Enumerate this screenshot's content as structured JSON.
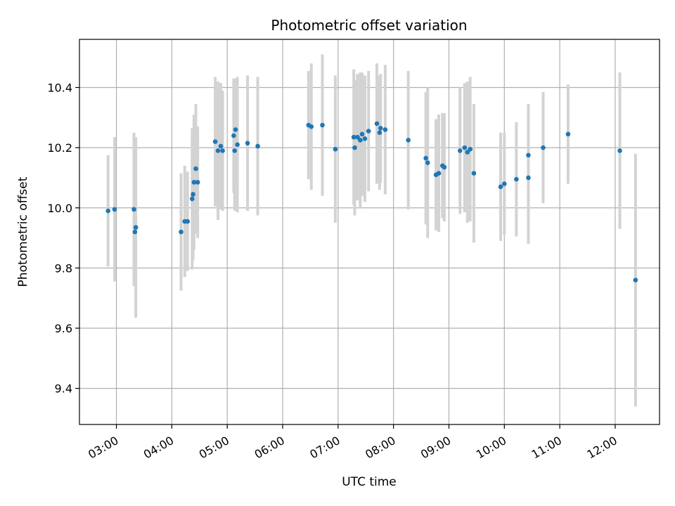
{
  "chart_data": {
    "type": "scatter",
    "title": "Photometric offset variation",
    "xlabel": "UTC time",
    "ylabel": "Photometric offset",
    "x_unit": "HH:MM (UTC)",
    "xlim": [
      "02:20",
      "12:48"
    ],
    "ylim": [
      9.28,
      10.56
    ],
    "x_ticks": [
      "03:00",
      "04:00",
      "05:00",
      "06:00",
      "07:00",
      "08:00",
      "09:00",
      "10:00",
      "11:00",
      "12:00"
    ],
    "y_ticks": [
      "9.4",
      "9.6",
      "9.8",
      "10.0",
      "10.2",
      "10.4"
    ],
    "grid": true,
    "legend": "none",
    "colors": {
      "marker": "#1f77b4",
      "errorbar": "#d3d3d3",
      "grid": "#b0b0b0"
    },
    "points": [
      {
        "x": "02:51",
        "y": 9.99,
        "err": 0.185
      },
      {
        "x": "02:58",
        "y": 9.995,
        "err": 0.24
      },
      {
        "x": "03:19",
        "y": 9.995,
        "err": 0.255
      },
      {
        "x": "03:20",
        "y": 9.92,
        "err": 0.18
      },
      {
        "x": "03:21",
        "y": 9.935,
        "err": 0.3
      },
      {
        "x": "04:10",
        "y": 9.92,
        "err": 0.195
      },
      {
        "x": "04:14",
        "y": 9.955,
        "err": 0.185
      },
      {
        "x": "04:17",
        "y": 9.955,
        "err": 0.165
      },
      {
        "x": "04:22",
        "y": 10.03,
        "err": 0.235
      },
      {
        "x": "04:23",
        "y": 10.045,
        "err": 0.22
      },
      {
        "x": "04:24",
        "y": 10.085,
        "err": 0.225
      },
      {
        "x": "04:26",
        "y": 10.13,
        "err": 0.215
      },
      {
        "x": "04:28",
        "y": 10.085,
        "err": 0.185
      },
      {
        "x": "04:47",
        "y": 10.22,
        "err": 0.215
      },
      {
        "x": "04:50",
        "y": 10.19,
        "err": 0.23
      },
      {
        "x": "04:53",
        "y": 10.205,
        "err": 0.21
      },
      {
        "x": "04:55",
        "y": 10.19,
        "err": 0.2
      },
      {
        "x": "05:07",
        "y": 10.24,
        "err": 0.19
      },
      {
        "x": "05:08",
        "y": 10.19,
        "err": 0.2
      },
      {
        "x": "05:09",
        "y": 10.26,
        "err": 0.17
      },
      {
        "x": "05:11",
        "y": 10.21,
        "err": 0.225
      },
      {
        "x": "05:22",
        "y": 10.215,
        "err": 0.225
      },
      {
        "x": "05:33",
        "y": 10.205,
        "err": 0.23
      },
      {
        "x": "06:28",
        "y": 10.275,
        "err": 0.18
      },
      {
        "x": "06:31",
        "y": 10.27,
        "err": 0.21
      },
      {
        "x": "06:43",
        "y": 10.275,
        "err": 0.235
      },
      {
        "x": "06:57",
        "y": 10.195,
        "err": 0.245
      },
      {
        "x": "07:17",
        "y": 10.235,
        "err": 0.225
      },
      {
        "x": "07:18",
        "y": 10.2,
        "err": 0.225
      },
      {
        "x": "07:21",
        "y": 10.235,
        "err": 0.21
      },
      {
        "x": "07:24",
        "y": 10.225,
        "err": 0.225
      },
      {
        "x": "07:26",
        "y": 10.245,
        "err": 0.205
      },
      {
        "x": "07:29",
        "y": 10.23,
        "err": 0.21
      },
      {
        "x": "07:33",
        "y": 10.255,
        "err": 0.2
      },
      {
        "x": "07:42",
        "y": 10.28,
        "err": 0.2
      },
      {
        "x": "07:45",
        "y": 10.25,
        "err": 0.19
      },
      {
        "x": "07:46",
        "y": 10.265,
        "err": 0.18
      },
      {
        "x": "07:51",
        "y": 10.26,
        "err": 0.215
      },
      {
        "x": "08:16",
        "y": 10.225,
        "err": 0.23
      },
      {
        "x": "08:35",
        "y": 10.165,
        "err": 0.22
      },
      {
        "x": "08:37",
        "y": 10.15,
        "err": 0.25
      },
      {
        "x": "08:46",
        "y": 10.11,
        "err": 0.185
      },
      {
        "x": "08:49",
        "y": 10.115,
        "err": 0.195
      },
      {
        "x": "08:53",
        "y": 10.14,
        "err": 0.175
      },
      {
        "x": "08:55",
        "y": 10.135,
        "err": 0.18
      },
      {
        "x": "09:12",
        "y": 10.19,
        "err": 0.21
      },
      {
        "x": "09:17",
        "y": 10.2,
        "err": 0.215
      },
      {
        "x": "09:20",
        "y": 10.185,
        "err": 0.235
      },
      {
        "x": "09:23",
        "y": 10.195,
        "err": 0.24
      },
      {
        "x": "09:27",
        "y": 10.115,
        "err": 0.23
      },
      {
        "x": "09:56",
        "y": 10.07,
        "err": 0.18
      },
      {
        "x": "10:00",
        "y": 10.08,
        "err": 0.17
      },
      {
        "x": "10:13",
        "y": 10.095,
        "err": 0.19
      },
      {
        "x": "10:26",
        "y": 10.175,
        "err": 0.17
      },
      {
        "x": "10:26",
        "y": 10.1,
        "err": 0.22
      },
      {
        "x": "10:42",
        "y": 10.2,
        "err": 0.185
      },
      {
        "x": "11:09",
        "y": 10.245,
        "err": 0.165
      },
      {
        "x": "12:05",
        "y": 10.19,
        "err": 0.26
      },
      {
        "x": "12:22",
        "y": 9.76,
        "err": 0.42
      }
    ]
  }
}
